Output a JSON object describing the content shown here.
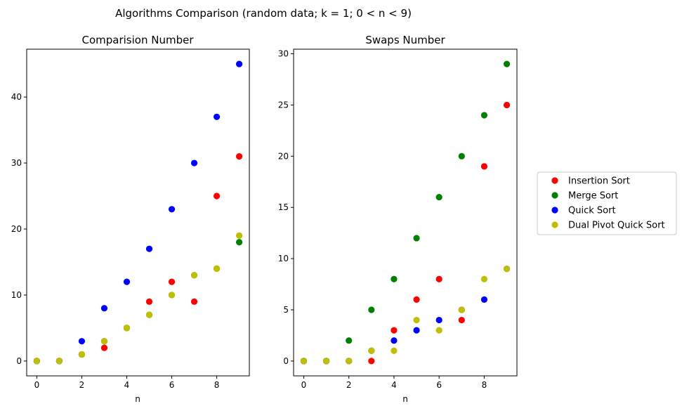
{
  "figure": {
    "suptitle": "Algorithms Comparison (random data;  k = 1;  0 < n < 9)"
  },
  "colors": {
    "Insertion Sort": "#ff0000",
    "Merge Sort": "#008000",
    "Quick Sort": "#0000ff",
    "Dual Pivot Quick Sort": "#bfbf00"
  },
  "legend": {
    "placement": "right",
    "entries": [
      "Insertion Sort",
      "Merge Sort",
      "Quick Sort",
      "Dual Pivot Quick Sort"
    ]
  },
  "chart_data": [
    {
      "type": "scatter",
      "title": "Comparision Number",
      "xlabel": "n",
      "ylabel": "",
      "xlim": [
        -0.45,
        9.45
      ],
      "ylim": [
        -2.25,
        47.25
      ],
      "xticks": [
        0,
        2,
        4,
        6,
        8
      ],
      "yticks": [
        0,
        10,
        20,
        30,
        40
      ],
      "grid": false,
      "series": [
        {
          "name": "Insertion Sort",
          "x": [
            0,
            1,
            2,
            3,
            4,
            5,
            6,
            7,
            8,
            9
          ],
          "y": [
            0,
            0,
            1,
            2,
            5,
            9,
            12,
            9,
            25,
            31
          ]
        },
        {
          "name": "Merge Sort",
          "x": [
            0,
            1,
            2,
            3,
            4,
            5,
            6,
            7,
            8,
            9
          ],
          "y": [
            0,
            0,
            1,
            3,
            5,
            7,
            10,
            13,
            14,
            18
          ]
        },
        {
          "name": "Quick Sort",
          "x": [
            0,
            1,
            2,
            3,
            4,
            5,
            6,
            7,
            8,
            9
          ],
          "y": [
            0,
            0,
            3,
            8,
            12,
            17,
            23,
            30,
            37,
            45
          ]
        },
        {
          "name": "Dual Pivot Quick Sort",
          "x": [
            0,
            1,
            2,
            3,
            4,
            5,
            6,
            7,
            8,
            9
          ],
          "y": [
            0,
            0,
            1,
            3,
            5,
            7,
            10,
            13,
            14,
            19
          ]
        }
      ]
    },
    {
      "type": "scatter",
      "title": "Swaps Number",
      "xlabel": "n",
      "ylabel": "",
      "xlim": [
        -0.45,
        9.45
      ],
      "ylim": [
        -1.45,
        30.45
      ],
      "xticks": [
        0,
        2,
        4,
        6,
        8
      ],
      "yticks": [
        0,
        5,
        10,
        15,
        20,
        25,
        30
      ],
      "grid": false,
      "series": [
        {
          "name": "Insertion Sort",
          "x": [
            0,
            1,
            2,
            3,
            4,
            5,
            6,
            7,
            8,
            9
          ],
          "y": [
            0,
            0,
            0,
            0,
            3,
            6,
            8,
            4,
            19,
            25
          ]
        },
        {
          "name": "Merge Sort",
          "x": [
            0,
            1,
            2,
            3,
            4,
            5,
            6,
            7,
            8,
            9
          ],
          "y": [
            0,
            0,
            2,
            5,
            8,
            12,
            16,
            20,
            24,
            29
          ]
        },
        {
          "name": "Quick Sort",
          "x": [
            0,
            1,
            2,
            3,
            4,
            5,
            6,
            7,
            8,
            9
          ],
          "y": [
            0,
            0,
            0,
            1,
            2,
            3,
            4,
            5,
            6,
            9
          ]
        },
        {
          "name": "Dual Pivot Quick Sort",
          "x": [
            0,
            1,
            2,
            3,
            4,
            5,
            6,
            7,
            8,
            9
          ],
          "y": [
            0,
            0,
            0,
            1,
            1,
            4,
            3,
            5,
            8,
            9
          ]
        }
      ]
    }
  ]
}
